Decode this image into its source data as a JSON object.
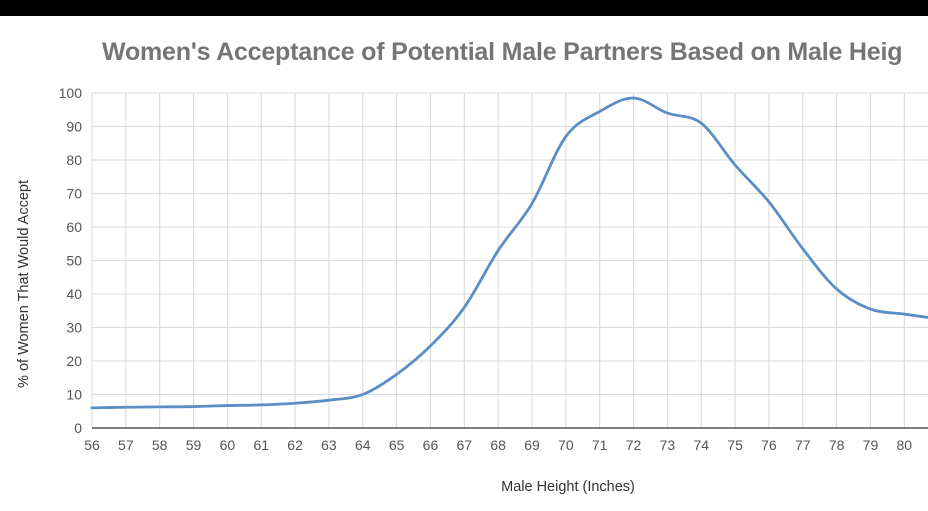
{
  "chart_data": {
    "type": "line",
    "title": "Women's Acceptance of Potential Male Partners Based on Male Heig",
    "xlabel": "Male Height (Inches)",
    "ylabel": "% of Women That Would Accept",
    "xlim": [
      56,
      80.7
    ],
    "ylim": [
      0,
      100
    ],
    "x_ticks": [
      56,
      57,
      58,
      59,
      60,
      61,
      62,
      63,
      64,
      65,
      66,
      67,
      68,
      69,
      70,
      71,
      72,
      73,
      74,
      75,
      76,
      77,
      78,
      79,
      80
    ],
    "y_ticks": [
      0,
      10,
      20,
      30,
      40,
      50,
      60,
      70,
      80,
      90,
      100
    ],
    "grid": true,
    "series": [
      {
        "color": "#5b8ec4",
        "x": [
          56,
          57,
          58,
          59,
          60,
          61,
          62,
          63,
          64,
          65,
          66,
          67,
          68,
          69,
          70,
          71,
          72,
          73,
          74,
          75,
          76,
          77,
          78,
          79,
          80,
          80.7
        ],
        "values": [
          6,
          6.2,
          6.3,
          6.4,
          6.7,
          6.9,
          7.4,
          8.3,
          10,
          16,
          24.5,
          36,
          53,
          67,
          87,
          94.5,
          98.5,
          94,
          91,
          78.5,
          67.5,
          53.5,
          41.5,
          35.5,
          34,
          33
        ]
      }
    ]
  }
}
